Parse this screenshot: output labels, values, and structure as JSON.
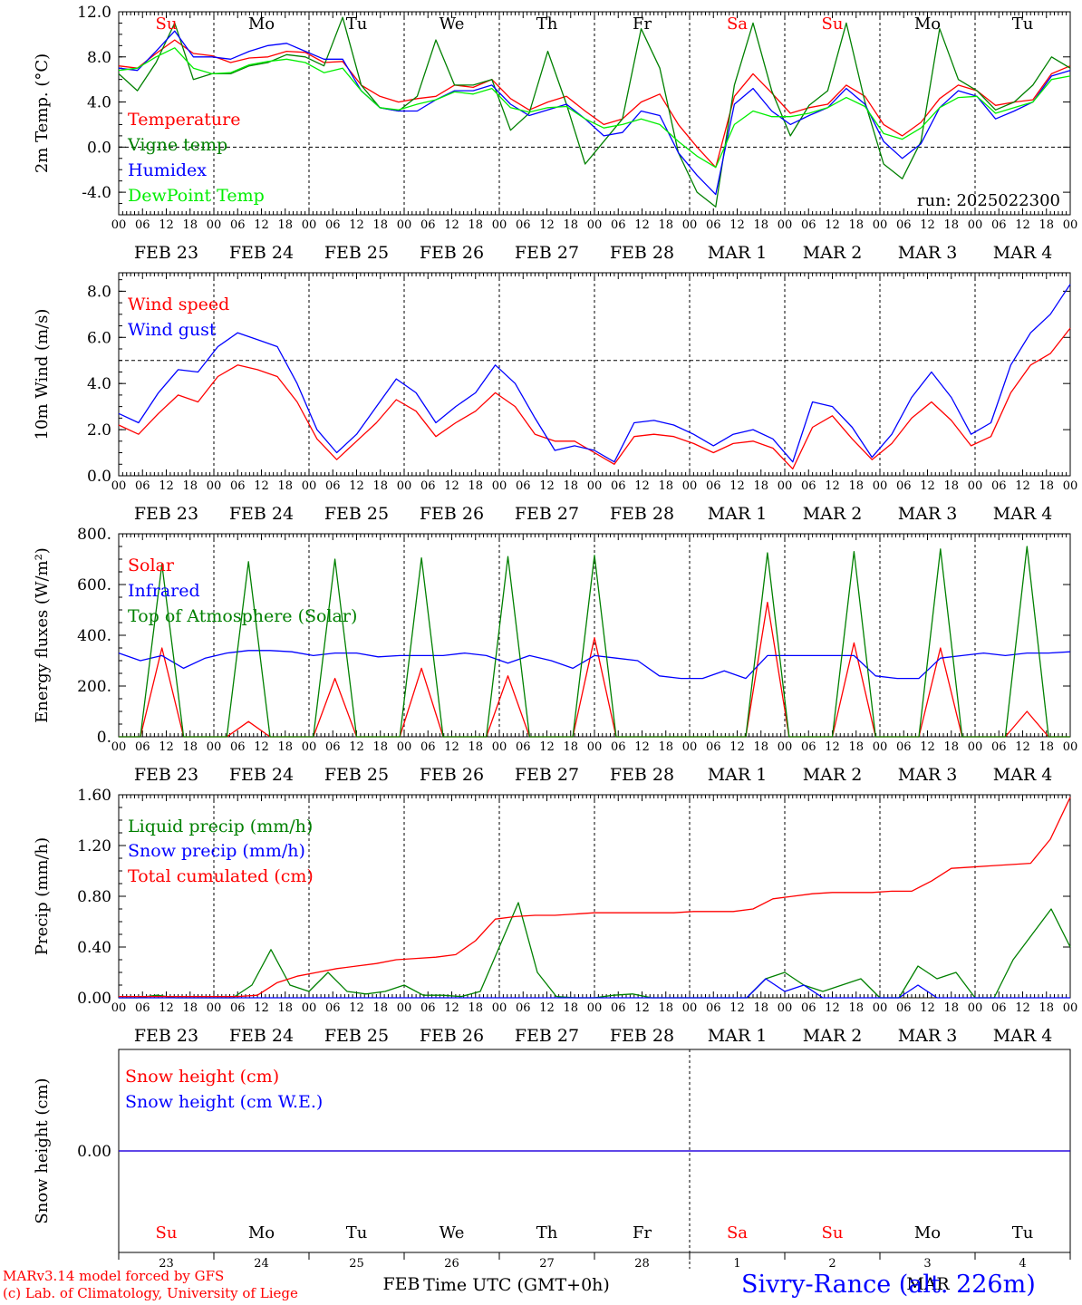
{
  "x_axis": {
    "hour_ticks": [
      "00",
      "06",
      "12",
      "18"
    ],
    "final_tick": "00",
    "date_labels": [
      "FEB 23",
      "FEB 24",
      "FEB 25",
      "FEB 26",
      "FEB 27",
      "FEB 28",
      "MAR  1",
      "MAR  2",
      "MAR  3",
      "MAR  4"
    ],
    "day_labels": [
      "Su",
      "Mo",
      "Tu",
      "We",
      "Th",
      "Fr",
      "Sa",
      "Su",
      "Mo",
      "Tu"
    ],
    "weekend_color": "#ff0000",
    "weekday_color": "#000000",
    "weekend_flags": [
      true,
      false,
      false,
      false,
      false,
      false,
      true,
      true,
      false,
      false
    ],
    "day_numbers": [
      "23",
      "24",
      "25",
      "26",
      "27",
      "28",
      "1",
      "2",
      "3",
      "4"
    ],
    "bottom_month_left": "FEB",
    "bottom_month_right": "MAR",
    "bottom_title": "Time UTC (GMT+0h)"
  },
  "colors": {
    "red": "#ff0000",
    "green": "#008000",
    "blue": "#0000ff",
    "lightgreen": "#00ee00"
  },
  "footer": {
    "line1": "MARv3.14 model forced by GFS",
    "line2": "(c) Lab. of Climatology, University of Liege",
    "station": "Sivry-Rance (alt. 226m)"
  },
  "chart_data": [
    {
      "type": "line",
      "ylabel": "2m Temp. (°C)",
      "ylim": [
        -6,
        12
      ],
      "yticks": [
        "12.0",
        "8.0",
        "4.0",
        "0.0",
        "-4.0"
      ],
      "ytick_values": [
        12,
        8,
        4,
        0,
        -4
      ],
      "reference_line": 0,
      "run_label": "run: 2025022300",
      "x_hours_step": 6,
      "series": [
        {
          "name": "Temperature",
          "color": "red",
          "values": [
            7.2,
            7,
            8.3,
            9.5,
            8.3,
            8.1,
            7.5,
            7.9,
            8,
            8.5,
            8.4,
            7.5,
            7.6,
            5.5,
            4.5,
            4,
            4.3,
            4.5,
            5.5,
            5.3,
            6,
            4.3,
            3.3,
            4,
            4.5,
            3.2,
            2,
            2.5,
            4,
            4.7,
            2,
            0,
            -1.8,
            4.5,
            6.5,
            4.8,
            3,
            3.5,
            3.8,
            5.5,
            4.5,
            2,
            1,
            2.2,
            4.3,
            5.5,
            5,
            3.7,
            4,
            4.2,
            6.5,
            7.2
          ]
        },
        {
          "name": "Vigne temp",
          "color": "green",
          "values": [
            6.5,
            5,
            7.5,
            11,
            6,
            6.5,
            6.5,
            7.2,
            7.5,
            8.2,
            8,
            7.2,
            11.5,
            5.5,
            3.5,
            3.2,
            4.5,
            9.5,
            5.5,
            5.5,
            6,
            1.5,
            3,
            8.5,
            3.8,
            -1.5,
            0.5,
            2.5,
            10.5,
            7,
            -0.5,
            -4,
            -5.3,
            5.5,
            11,
            5,
            1,
            3.7,
            5,
            11,
            4,
            -1.5,
            -2.8,
            0.5,
            10.5,
            6,
            5,
            3.3,
            4,
            5.5,
            8,
            7
          ]
        },
        {
          "name": "Humidex",
          "color": "blue",
          "values": [
            7,
            6.8,
            8.5,
            10.3,
            8,
            8,
            7.8,
            8.5,
            9,
            9.2,
            8.5,
            7.8,
            7.8,
            5,
            3.5,
            3.2,
            3.2,
            4.2,
            5,
            5,
            5.5,
            3.8,
            2.8,
            3.3,
            3.8,
            2.5,
            1,
            1.3,
            3.2,
            2.8,
            -0.5,
            -2.5,
            -4.2,
            3.8,
            5.2,
            3.2,
            2,
            2.8,
            3.5,
            5.2,
            3.8,
            0.5,
            -1,
            0.3,
            3.5,
            5,
            4.5,
            2.5,
            3.2,
            4,
            6.3,
            6.8
          ]
        },
        {
          "name": "DewPoint Temp",
          "color": "lightgreen",
          "values": [
            6.8,
            7,
            8,
            8.8,
            7,
            6.5,
            6.6,
            7.3,
            7.6,
            7.8,
            7.5,
            6.6,
            7,
            5,
            3.5,
            3.3,
            3.8,
            4.2,
            4.9,
            4.7,
            5.2,
            3.5,
            3.1,
            3.5,
            3.6,
            2.5,
            1.7,
            2,
            2.5,
            2,
            0.5,
            -0.8,
            -1.8,
            2,
            3.2,
            2.7,
            2.7,
            3,
            3.5,
            4.4,
            3.6,
            1.2,
            0.7,
            1.7,
            3.5,
            4.4,
            4.5,
            3,
            3.5,
            4,
            6,
            6.3
          ]
        }
      ]
    },
    {
      "type": "line",
      "ylabel": "10m Wind (m/s)",
      "ylim": [
        0,
        8.8
      ],
      "yticks": [
        "8.0",
        "6.0",
        "4.0",
        "2.0",
        "0.0"
      ],
      "ytick_values": [
        8,
        6,
        4,
        2,
        0
      ],
      "reference_line": 5,
      "x_hours_step": 6,
      "series": [
        {
          "name": "Wind speed",
          "color": "red",
          "values": [
            2.2,
            1.8,
            2.7,
            3.5,
            3.2,
            4.3,
            4.8,
            4.6,
            4.3,
            3.2,
            1.6,
            0.7,
            1.5,
            2.3,
            3.3,
            2.8,
            1.7,
            2.3,
            2.8,
            3.6,
            3,
            1.8,
            1.5,
            1.5,
            1,
            0.5,
            1.7,
            1.8,
            1.7,
            1.4,
            1,
            1.4,
            1.5,
            1.2,
            0.3,
            2.1,
            2.6,
            1.6,
            0.7,
            1.4,
            2.5,
            3.2,
            2.4,
            1.3,
            1.7,
            3.6,
            4.8,
            5.3,
            6.4
          ]
        },
        {
          "name": "Wind gust",
          "color": "blue",
          "values": [
            2.7,
            2.3,
            3.6,
            4.6,
            4.5,
            5.6,
            6.2,
            5.9,
            5.6,
            4,
            2,
            1,
            1.8,
            3,
            4.2,
            3.6,
            2.3,
            3,
            3.6,
            4.8,
            4,
            2.5,
            1.1,
            1.3,
            1.1,
            0.6,
            2.3,
            2.4,
            2.2,
            1.8,
            1.3,
            1.8,
            2,
            1.6,
            0.6,
            3.2,
            3,
            2.1,
            0.8,
            1.8,
            3.4,
            4.5,
            3.4,
            1.8,
            2.3,
            4.8,
            6.2,
            7,
            8.3
          ]
        }
      ]
    },
    {
      "type": "line",
      "ylabel": "Energy fluxes (W/m²)",
      "ylim": [
        0,
        800
      ],
      "yticks": [
        "800.",
        "600.",
        "400.",
        "200.",
        "0."
      ],
      "ytick_values": [
        800,
        600,
        400,
        200,
        0
      ],
      "x_hours_step": 6,
      "series": [
        {
          "name": "Solar",
          "color": "red",
          "values": [
            0,
            0,
            350,
            0,
            0,
            0,
            60,
            0,
            0,
            0,
            230,
            0,
            0,
            0,
            270,
            0,
            0,
            0,
            240,
            0,
            0,
            0,
            390,
            0,
            0,
            0,
            0,
            0,
            0,
            0,
            530,
            0,
            0,
            0,
            370,
            0,
            0,
            0,
            350,
            0,
            0,
            0,
            100,
            0,
            0
          ]
        },
        {
          "name": "Infrared",
          "color": "blue",
          "values": [
            330,
            300,
            320,
            270,
            310,
            330,
            340,
            340,
            335,
            320,
            330,
            330,
            315,
            320,
            320,
            320,
            330,
            320,
            290,
            320,
            300,
            270,
            320,
            310,
            300,
            240,
            230,
            230,
            260,
            230,
            320,
            320,
            320,
            320,
            320,
            240,
            230,
            230,
            310,
            320,
            330,
            320,
            330,
            330,
            335
          ]
        },
        {
          "name": "Top of Atmosphere (Solar)",
          "color": "green",
          "values": [
            0,
            0,
            680,
            0,
            0,
            0,
            690,
            0,
            0,
            0,
            700,
            0,
            0,
            0,
            705,
            0,
            0,
            0,
            710,
            0,
            0,
            0,
            715,
            0,
            0,
            0,
            0,
            0,
            0,
            0,
            725,
            0,
            0,
            0,
            730,
            0,
            0,
            0,
            740,
            0,
            0,
            0,
            750,
            0,
            0
          ]
        }
      ]
    },
    {
      "type": "line",
      "ylabel": "Precip (mm/h)",
      "ylim": [
        0,
        1.6
      ],
      "yticks": [
        "1.60",
        "1.20",
        "0.80",
        "0.40",
        "0.00"
      ],
      "ytick_values": [
        1.6,
        1.2,
        0.8,
        0.4,
        0
      ],
      "x_hours_step": 6,
      "series": [
        {
          "name": "Liquid precip (mm/h)",
          "color": "green",
          "values": [
            0,
            0,
            0.02,
            0,
            0,
            0,
            0,
            0.1,
            0.38,
            0.1,
            0.05,
            0.2,
            0.05,
            0.03,
            0.05,
            0.1,
            0.02,
            0.02,
            0.01,
            0.05,
            0.4,
            0.75,
            0.2,
            0.01,
            0,
            0,
            0.02,
            0.03,
            0,
            0,
            0,
            0,
            0,
            0,
            0.15,
            0.2,
            0.1,
            0.05,
            0.1,
            0.15,
            0,
            0,
            0.25,
            0.15,
            0.2,
            0,
            0,
            0.3,
            0.5,
            0.7,
            0.4
          ]
        },
        {
          "name": "Snow precip (mm/h)",
          "color": "blue",
          "values": [
            0,
            0,
            0,
            0,
            0,
            0,
            0,
            0,
            0,
            0,
            0,
            0,
            0,
            0,
            0,
            0,
            0,
            0,
            0,
            0,
            0,
            0,
            0,
            0,
            0,
            0,
            0,
            0,
            0,
            0,
            0,
            0,
            0,
            0,
            0.15,
            0.05,
            0.1,
            0,
            0,
            0,
            0,
            0,
            0.1,
            0,
            0,
            0,
            0,
            0,
            0,
            0,
            0
          ]
        },
        {
          "name": "Total cumulated (cm)",
          "color": "red",
          "values": [
            0.01,
            0.01,
            0.01,
            0.01,
            0.01,
            0.01,
            0.01,
            0.02,
            0.12,
            0.17,
            0.2,
            0.23,
            0.25,
            0.27,
            0.3,
            0.31,
            0.32,
            0.34,
            0.45,
            0.62,
            0.64,
            0.65,
            0.65,
            0.66,
            0.67,
            0.67,
            0.67,
            0.67,
            0.67,
            0.68,
            0.68,
            0.68,
            0.7,
            0.78,
            0.8,
            0.82,
            0.83,
            0.83,
            0.83,
            0.84,
            0.84,
            0.92,
            1.02,
            1.03,
            1.04,
            1.05,
            1.06,
            1.25,
            1.58
          ]
        }
      ]
    },
    {
      "type": "line",
      "ylabel": "Snow height (cm)",
      "ylim": [
        -1,
        1
      ],
      "yticks": [
        "0.00"
      ],
      "ytick_values": [
        0
      ],
      "series": [
        {
          "name": "Snow height (cm)",
          "color": "red",
          "values": [
            0,
            0
          ]
        },
        {
          "name": "Snow height (cm W.E.)",
          "color": "blue",
          "values": [
            0,
            0
          ]
        }
      ]
    }
  ]
}
